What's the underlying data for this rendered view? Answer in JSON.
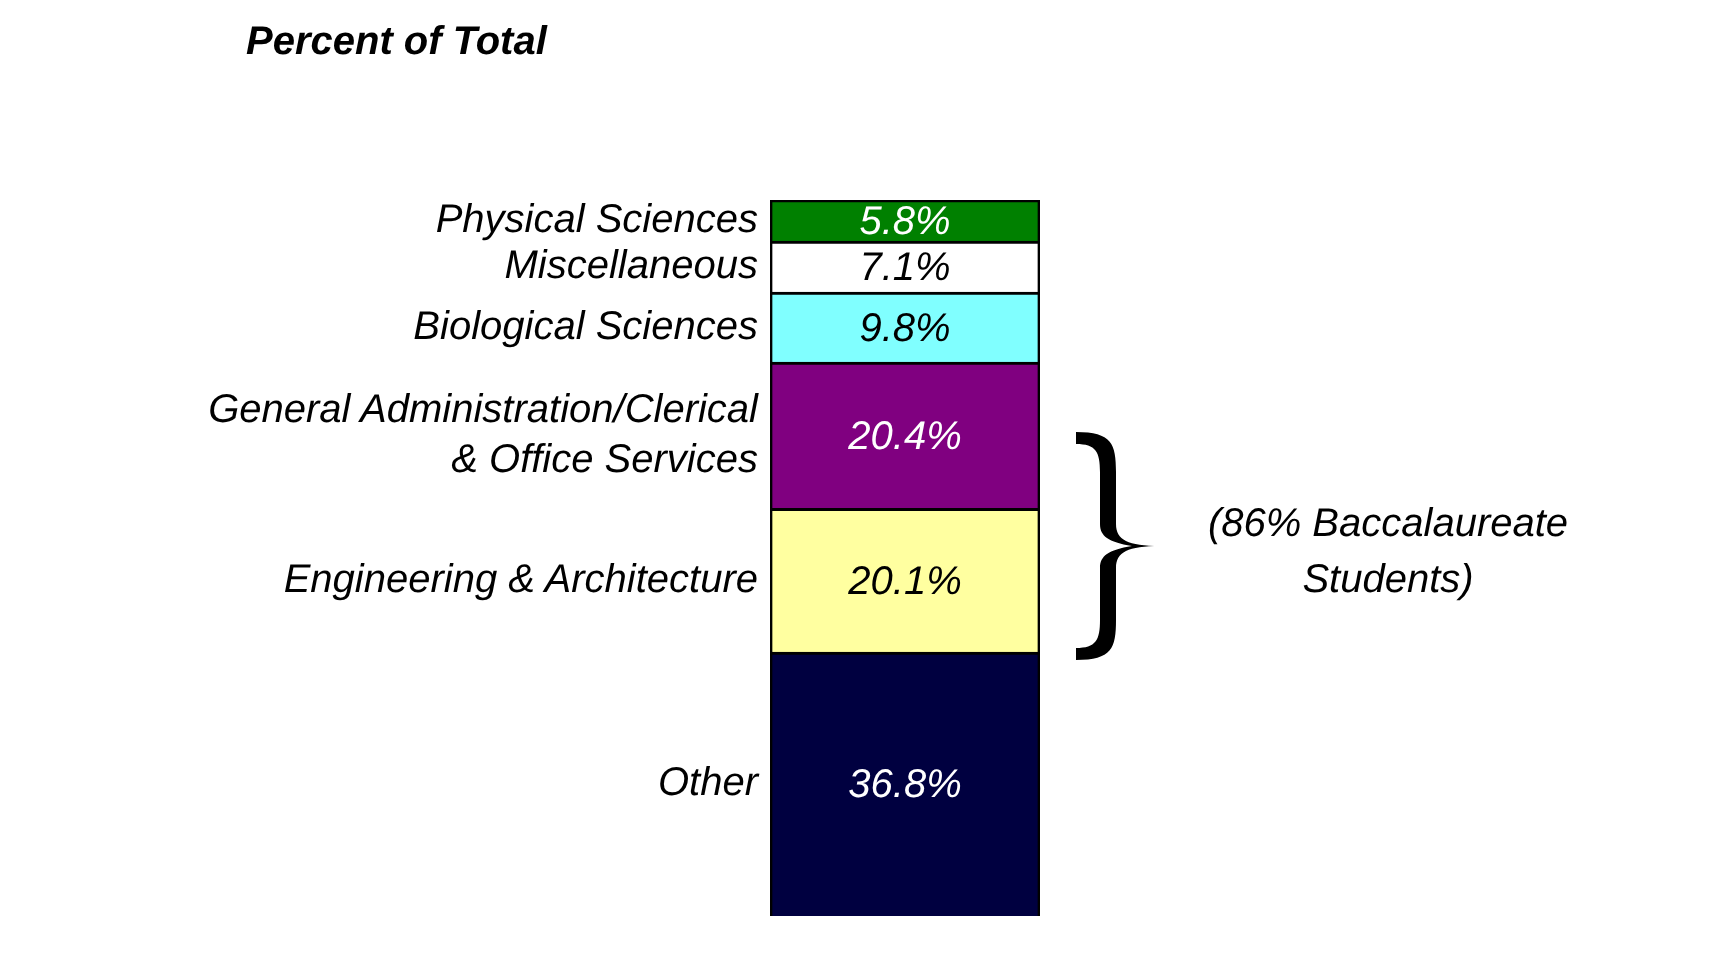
{
  "chart_data": {
    "type": "bar",
    "title": "Percent of Total",
    "stacked": true,
    "legend": false,
    "categories": [
      null
    ],
    "series": [
      {
        "name": "Other",
        "color": "#000040",
        "values": [
          36.8
        ],
        "value_labels": [
          "36.8%"
        ]
      },
      {
        "name": "Engineering & Architecture",
        "color": "#ffffa0",
        "values": [
          20.1
        ],
        "value_labels": [
          "20.1%"
        ]
      },
      {
        "name": "General Administration/Clerical & Office Services",
        "color": "#800080",
        "values": [
          20.4
        ],
        "value_labels": [
          "20.4%"
        ]
      },
      {
        "name": "Biological Sciences",
        "color": "#80ffff",
        "values": [
          9.8
        ],
        "value_labels": [
          "9.8%"
        ]
      },
      {
        "name": "Miscellaneous",
        "color": "#ffffff",
        "values": [
          7.1
        ],
        "value_labels": [
          "7.1%"
        ]
      },
      {
        "name": "Physical Sciences",
        "color": "#008000",
        "values": [
          5.8
        ],
        "value_labels": [
          "5.8%"
        ]
      }
    ],
    "annotations": [
      "(86%  Baccalaureate Students)"
    ]
  }
}
